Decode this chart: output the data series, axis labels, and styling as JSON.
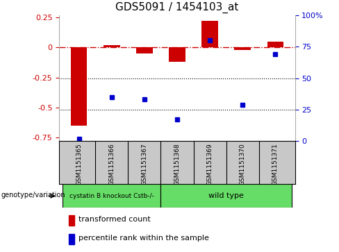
{
  "title": "GDS5091 / 1454103_at",
  "samples": [
    "GSM1151365",
    "GSM1151366",
    "GSM1151367",
    "GSM1151368",
    "GSM1151369",
    "GSM1151370",
    "GSM1151371"
  ],
  "red_values": [
    -0.65,
    0.02,
    -0.05,
    -0.12,
    0.22,
    -0.02,
    0.05
  ],
  "blue_values_pct": [
    2,
    35,
    33,
    17,
    80,
    29,
    69
  ],
  "ylim_left": [
    -0.78,
    0.27
  ],
  "ylim_right": [
    0,
    100
  ],
  "yticks_left": [
    0.25,
    0.0,
    -0.25,
    -0.5,
    -0.75
  ],
  "yticks_right": [
    100,
    75,
    50,
    25,
    0
  ],
  "bar_color": "#cc0000",
  "dot_color": "#0000cc",
  "ref_line_color": "#cc0000",
  "dotted_line_color": "#000000",
  "bg_color": "#ffffff",
  "plot_bg_color": "#ffffff",
  "legend_red_label": "transformed count",
  "legend_blue_label": "percentile rank within the sample",
  "genotype_label": "genotype/variation",
  "group1_label": "cystatin B knockout Cstb-/-",
  "group2_label": "wild type",
  "group1_indices": [
    0,
    1,
    2
  ],
  "group2_indices": [
    3,
    4,
    5,
    6
  ],
  "sample_box_color": "#c8c8c8",
  "group_box_color": "#66dd66"
}
